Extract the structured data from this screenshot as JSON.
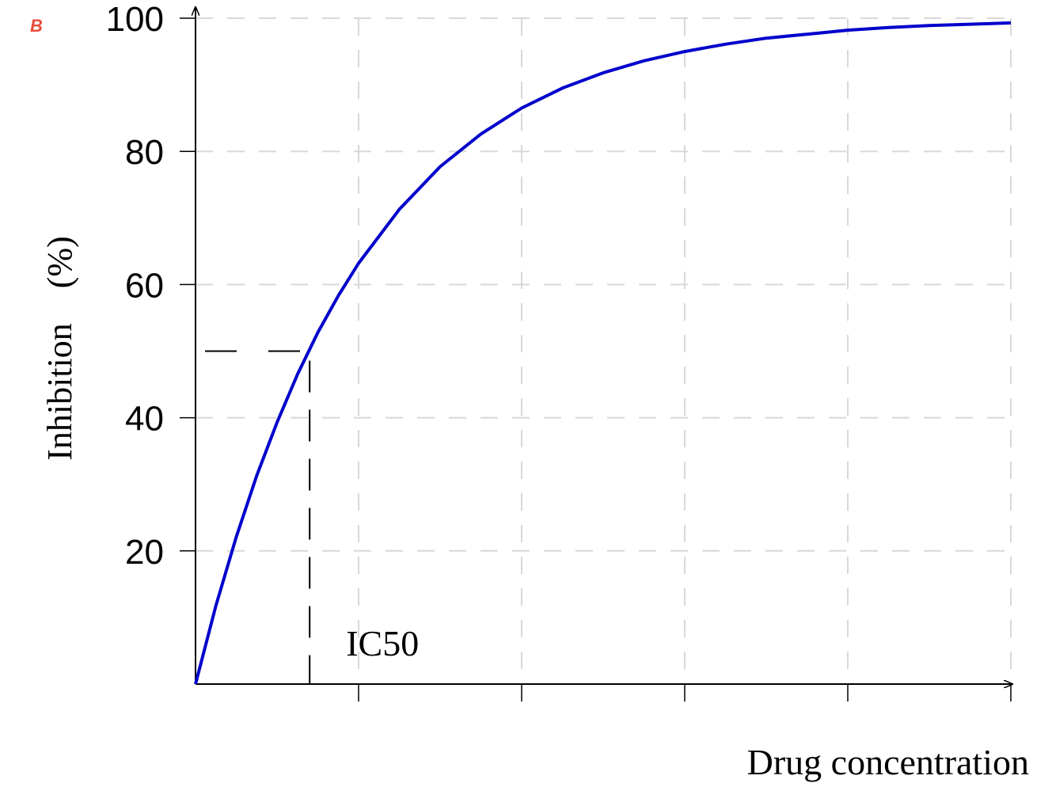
{
  "chart_data": {
    "type": "line",
    "panel_label": "B",
    "x_label": "Drug concentration",
    "y_label": "Inhibition    (%)",
    "x": [
      0,
      0.125,
      0.25,
      0.375,
      0.5,
      0.625,
      0.75,
      0.875,
      1,
      1.25,
      1.5,
      1.75,
      2,
      2.25,
      2.5,
      2.75,
      3,
      3.25,
      3.5,
      3.75,
      4,
      4.25,
      4.5,
      4.75,
      5
    ],
    "values": [
      0,
      11.8,
      22.1,
      31.3,
      39.3,
      46.5,
      52.8,
      58.3,
      63.2,
      71.3,
      77.7,
      82.6,
      86.5,
      89.5,
      91.8,
      93.6,
      95.0,
      96.1,
      97.0,
      97.6,
      98.2,
      98.6,
      98.9,
      99.1,
      99.3
    ],
    "color": "#0000cc",
    "xlim": [
      0,
      5
    ],
    "xticks": [
      1,
      2,
      3,
      4,
      5
    ],
    "ylim": [
      0,
      100
    ],
    "yticks": [
      20,
      40,
      60,
      80,
      100
    ],
    "grid": true,
    "annotation": {
      "x": 0.7,
      "y": 50,
      "label": "IC50"
    }
  }
}
